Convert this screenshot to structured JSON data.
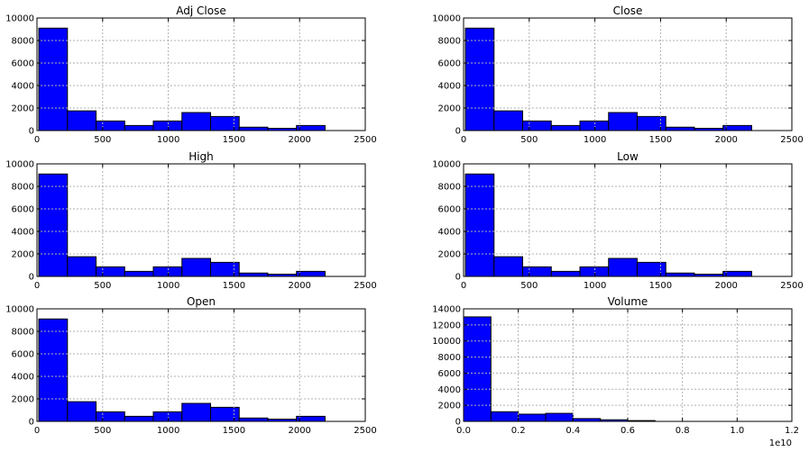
{
  "figure": {
    "background": "#ffffff",
    "bar_color": "#0000ff",
    "bar_edge_color": "#000000",
    "grid_color": "#b0b0b0"
  },
  "chart_data": [
    {
      "type": "bar",
      "subtype": "histogram",
      "title": "Adj Close",
      "bins": [
        [
          14,
          232
        ],
        [
          232,
          450
        ],
        [
          450,
          668
        ],
        [
          668,
          886
        ],
        [
          886,
          1104
        ],
        [
          1104,
          1322
        ],
        [
          1322,
          1540
        ],
        [
          1540,
          1758
        ],
        [
          1758,
          1976
        ],
        [
          1976,
          2194
        ]
      ],
      "values": [
        9100,
        1750,
        850,
        450,
        850,
        1600,
        1250,
        300,
        200,
        450
      ],
      "xlim": [
        0,
        2500
      ],
      "ylim": [
        0,
        10000
      ],
      "xticks": [
        0,
        500,
        1000,
        1500,
        2000,
        2500
      ],
      "yticks": [
        0,
        2000,
        4000,
        6000,
        8000,
        10000
      ],
      "xtick_labels": [
        "0",
        "500",
        "1000",
        "1500",
        "2000",
        "2500"
      ],
      "ytick_labels": [
        "0",
        "2000",
        "4000",
        "6000",
        "8000",
        "10000"
      ],
      "x_offset_label": "",
      "grid": true
    },
    {
      "type": "bar",
      "subtype": "histogram",
      "title": "Close",
      "bins": [
        [
          14,
          232
        ],
        [
          232,
          450
        ],
        [
          450,
          668
        ],
        [
          668,
          886
        ],
        [
          886,
          1104
        ],
        [
          1104,
          1322
        ],
        [
          1322,
          1540
        ],
        [
          1540,
          1758
        ],
        [
          1758,
          1976
        ],
        [
          1976,
          2194
        ]
      ],
      "values": [
        9100,
        1750,
        850,
        450,
        850,
        1600,
        1250,
        300,
        200,
        450
      ],
      "xlim": [
        0,
        2500
      ],
      "ylim": [
        0,
        10000
      ],
      "xticks": [
        0,
        500,
        1000,
        1500,
        2000,
        2500
      ],
      "yticks": [
        0,
        2000,
        4000,
        6000,
        8000,
        10000
      ],
      "xtick_labels": [
        "0",
        "500",
        "1000",
        "1500",
        "2000",
        "2500"
      ],
      "ytick_labels": [
        "0",
        "2000",
        "4000",
        "6000",
        "8000",
        "10000"
      ],
      "x_offset_label": "",
      "grid": true
    },
    {
      "type": "bar",
      "subtype": "histogram",
      "title": "High",
      "bins": [
        [
          14,
          232
        ],
        [
          232,
          450
        ],
        [
          450,
          668
        ],
        [
          668,
          886
        ],
        [
          886,
          1104
        ],
        [
          1104,
          1322
        ],
        [
          1322,
          1540
        ],
        [
          1540,
          1758
        ],
        [
          1758,
          1976
        ],
        [
          1976,
          2194
        ]
      ],
      "values": [
        9100,
        1750,
        850,
        450,
        850,
        1600,
        1250,
        300,
        200,
        450
      ],
      "xlim": [
        0,
        2500
      ],
      "ylim": [
        0,
        10000
      ],
      "xticks": [
        0,
        500,
        1000,
        1500,
        2000,
        2500
      ],
      "yticks": [
        0,
        2000,
        4000,
        6000,
        8000,
        10000
      ],
      "xtick_labels": [
        "0",
        "500",
        "1000",
        "1500",
        "2000",
        "2500"
      ],
      "ytick_labels": [
        "0",
        "2000",
        "4000",
        "6000",
        "8000",
        "10000"
      ],
      "x_offset_label": "",
      "grid": true
    },
    {
      "type": "bar",
      "subtype": "histogram",
      "title": "Low",
      "bins": [
        [
          14,
          232
        ],
        [
          232,
          450
        ],
        [
          450,
          668
        ],
        [
          668,
          886
        ],
        [
          886,
          1104
        ],
        [
          1104,
          1322
        ],
        [
          1322,
          1540
        ],
        [
          1540,
          1758
        ],
        [
          1758,
          1976
        ],
        [
          1976,
          2194
        ]
      ],
      "values": [
        9100,
        1750,
        850,
        450,
        850,
        1600,
        1250,
        300,
        200,
        450
      ],
      "xlim": [
        0,
        2500
      ],
      "ylim": [
        0,
        10000
      ],
      "xticks": [
        0,
        500,
        1000,
        1500,
        2000,
        2500
      ],
      "yticks": [
        0,
        2000,
        4000,
        6000,
        8000,
        10000
      ],
      "xtick_labels": [
        "0",
        "500",
        "1000",
        "1500",
        "2000",
        "2500"
      ],
      "ytick_labels": [
        "0",
        "2000",
        "4000",
        "6000",
        "8000",
        "10000"
      ],
      "x_offset_label": "",
      "grid": true
    },
    {
      "type": "bar",
      "subtype": "histogram",
      "title": "Open",
      "bins": [
        [
          14,
          232
        ],
        [
          232,
          450
        ],
        [
          450,
          668
        ],
        [
          668,
          886
        ],
        [
          886,
          1104
        ],
        [
          1104,
          1322
        ],
        [
          1322,
          1540
        ],
        [
          1540,
          1758
        ],
        [
          1758,
          1976
        ],
        [
          1976,
          2194
        ]
      ],
      "values": [
        9100,
        1750,
        850,
        450,
        850,
        1600,
        1250,
        300,
        200,
        450
      ],
      "xlim": [
        0,
        2500
      ],
      "ylim": [
        0,
        10000
      ],
      "xticks": [
        0,
        500,
        1000,
        1500,
        2000,
        2500
      ],
      "yticks": [
        0,
        2000,
        4000,
        6000,
        8000,
        10000
      ],
      "xtick_labels": [
        "0",
        "500",
        "1000",
        "1500",
        "2000",
        "2500"
      ],
      "ytick_labels": [
        "0",
        "2000",
        "4000",
        "6000",
        "8000",
        "10000"
      ],
      "x_offset_label": "",
      "grid": true
    },
    {
      "type": "bar",
      "subtype": "histogram",
      "title": "Volume",
      "bins": [
        [
          0,
          0.1
        ],
        [
          0.1,
          0.2
        ],
        [
          0.2,
          0.3
        ],
        [
          0.3,
          0.4
        ],
        [
          0.4,
          0.5
        ],
        [
          0.5,
          0.6
        ],
        [
          0.6,
          0.7
        ],
        [
          0.7,
          0.8
        ],
        [
          0.8,
          0.9
        ],
        [
          0.9,
          1.0
        ]
      ],
      "values": [
        13000,
        1200,
        900,
        1000,
        350,
        200,
        100,
        0,
        0,
        0
      ],
      "xlim": [
        0,
        1.2
      ],
      "ylim": [
        0,
        14000
      ],
      "xticks": [
        0,
        0.2,
        0.4,
        0.6,
        0.8,
        1.0,
        1.2
      ],
      "yticks": [
        0,
        2000,
        4000,
        6000,
        8000,
        10000,
        12000,
        14000
      ],
      "xtick_labels": [
        "0.0",
        "0.2",
        "0.4",
        "0.6",
        "0.8",
        "1.0",
        "1.2"
      ],
      "ytick_labels": [
        "0",
        "2000",
        "4000",
        "6000",
        "8000",
        "10000",
        "12000",
        "14000"
      ],
      "x_offset_label": "1e10",
      "grid": true
    }
  ]
}
